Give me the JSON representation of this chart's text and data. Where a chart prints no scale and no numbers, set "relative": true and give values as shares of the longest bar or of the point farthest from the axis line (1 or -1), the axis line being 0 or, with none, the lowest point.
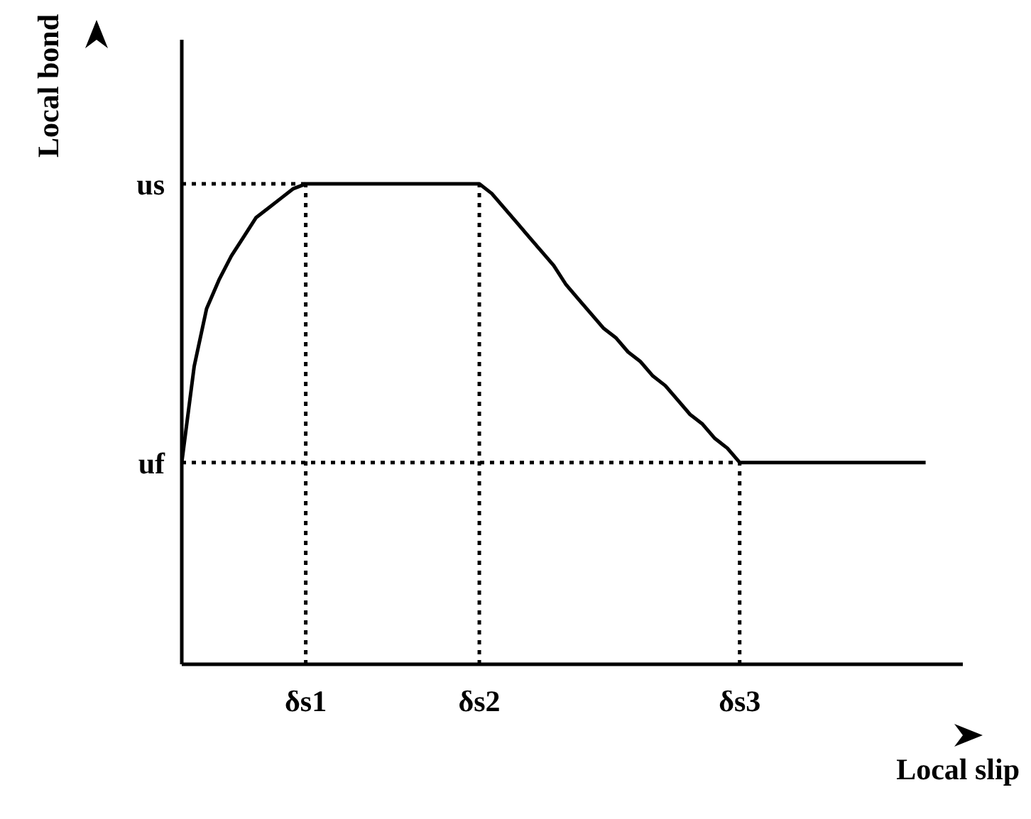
{
  "chart_data": {
    "type": "line",
    "relative": true,
    "xlabel": "Local slip",
    "ylabel": "Local bond",
    "color": "#000000",
    "line_style": "solid",
    "marker": "none",
    "categories": [
      null,
      null,
      null,
      null,
      null,
      null,
      null,
      null,
      null,
      null,
      "δs1",
      null,
      null,
      null,
      null,
      null,
      null,
      null,
      null,
      null,
      null,
      null,
      null,
      null,
      "δs2",
      null,
      null,
      null,
      null,
      null,
      null,
      null,
      null,
      null,
      null,
      null,
      null,
      null,
      null,
      null,
      null,
      null,
      null,
      null,
      null,
      "δs3",
      null,
      null,
      null,
      null,
      null,
      null,
      null,
      null,
      null,
      null,
      null,
      null,
      null,
      null,
      null
    ],
    "values": [
      0.42,
      0.62,
      0.74,
      0.8,
      0.85,
      0.89,
      0.93,
      0.95,
      0.97,
      0.99,
      1,
      1,
      1,
      1,
      1,
      1,
      1,
      1,
      1,
      1,
      1,
      1,
      1,
      1,
      1,
      0.98,
      0.95,
      0.92,
      0.89,
      0.86,
      0.83,
      0.79,
      0.76,
      0.73,
      0.7,
      0.68,
      0.65,
      0.63,
      0.6,
      0.58,
      0.55,
      0.52,
      0.5,
      0.47,
      0.45,
      0.42,
      0.42,
      0.42,
      0.42,
      0.42,
      0.42,
      0.42,
      0.42,
      0.42,
      0.42,
      0.42,
      0.42,
      0.42,
      0.42,
      0.42,
      0.42
    ],
    "ref_lines": [
      {
        "axis": "y",
        "value": 1,
        "label": "us",
        "line_style": "dotted",
        "color": "#000000"
      },
      {
        "axis": "y",
        "value": 0.42,
        "label": "uf",
        "line_style": "dotted",
        "color": "#000000"
      },
      {
        "axis": "x",
        "value": "δs1",
        "line_style": "dotted",
        "color": "#000000"
      },
      {
        "axis": "x",
        "value": "δs2",
        "line_style": "dotted",
        "color": "#000000"
      },
      {
        "axis": "x",
        "value": "δs3",
        "line_style": "dotted",
        "color": "#000000"
      }
    ]
  }
}
